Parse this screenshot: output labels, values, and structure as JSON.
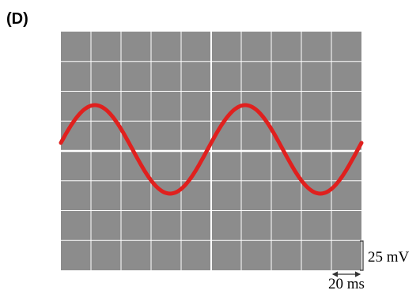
{
  "panel_label": "(D)",
  "vertical_scale": "25 mV",
  "horizontal_scale": "20 ms"
}
